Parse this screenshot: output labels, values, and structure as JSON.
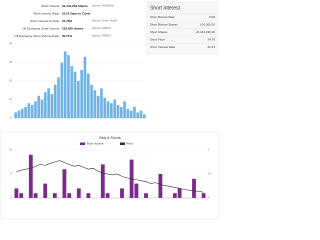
{
  "summary": {
    "rows": [
      {
        "label": "Short Interest:",
        "value": "24,444,216 Shares",
        "note": "(source: NASDAQ)"
      },
      {
        "label": "Short Interest Ratio:",
        "value": "21.51 Days to Cover",
        "note": ""
      },
      {
        "label": "Short Interest % Float:",
        "value": "24.76%",
        "note": "(source: Ortex, Fintel)"
      },
      {
        "label": "Off Exchange Short Volume:",
        "value": "152,425 shares",
        "note": "(source: FINRA)"
      },
      {
        "label": "Off Exchange Short Volume Ratio:",
        "value": "50.71%",
        "note": "(source: FINRA)"
      }
    ]
  },
  "panel": {
    "title": "Short Interest",
    "rows": [
      [
        "Short Borrow Rate",
        "0.00"
      ],
      [
        "Short Borrow Shares",
        "100,000.00"
      ],
      [
        "Short Shares",
        "24,444,216.00"
      ],
      [
        "Short Float",
        "24.76"
      ],
      [
        "Short Interest Rate",
        "21.51"
      ]
    ]
  },
  "chart_data": [
    {
      "type": "bar",
      "color": "#6fb2e6",
      "values": [
        3,
        4,
        5,
        6,
        8,
        7,
        9,
        12,
        10,
        14,
        16,
        13,
        18,
        22,
        30,
        36,
        34,
        28,
        25,
        20,
        26,
        33,
        24,
        18,
        15,
        12,
        16,
        11,
        9,
        8,
        10,
        7,
        6,
        9,
        5,
        4,
        6,
        3,
        4,
        2
      ],
      "ylim": [
        0,
        40
      ],
      "yticks": [
        0,
        10,
        20,
        30,
        40
      ],
      "grid": true
    },
    {
      "type": "combo",
      "title": "Bids & Shorts",
      "series": [
        {
          "name": "Short Volume",
          "type": "bar",
          "color": "#7b2a8c",
          "values": [
            2,
            1,
            0,
            9,
            1,
            0,
            3,
            0,
            1,
            0,
            6,
            1,
            0,
            2,
            0,
            1,
            0,
            0,
            7,
            1,
            0,
            0,
            2,
            0,
            8,
            3,
            0,
            1,
            0,
            0,
            5,
            0,
            0,
            1,
            2,
            0,
            0,
            4,
            0,
            1
          ]
        },
        {
          "name": "Price",
          "type": "line",
          "axis": "y2",
          "color": "#333333",
          "values": [
            0.55,
            0.58,
            0.6,
            0.62,
            0.66,
            0.7,
            0.68,
            0.72,
            0.75,
            0.78,
            0.74,
            0.7,
            0.66,
            0.68,
            0.64,
            0.6,
            0.62,
            0.56,
            0.52,
            0.5,
            0.48,
            0.5,
            0.45,
            0.42,
            0.4,
            0.38,
            0.36,
            0.34,
            0.3,
            0.32,
            0.28,
            0.26,
            0.24,
            0.22,
            0.2,
            0.18,
            0.16,
            0.15,
            0.14,
            0.12
          ]
        }
      ],
      "ylim": [
        0,
        10
      ],
      "yticks": [
        0,
        5,
        10
      ],
      "y2lim": [
        0,
        1
      ],
      "y2ticks": [
        0,
        0.5,
        1
      ],
      "grid": true
    }
  ]
}
